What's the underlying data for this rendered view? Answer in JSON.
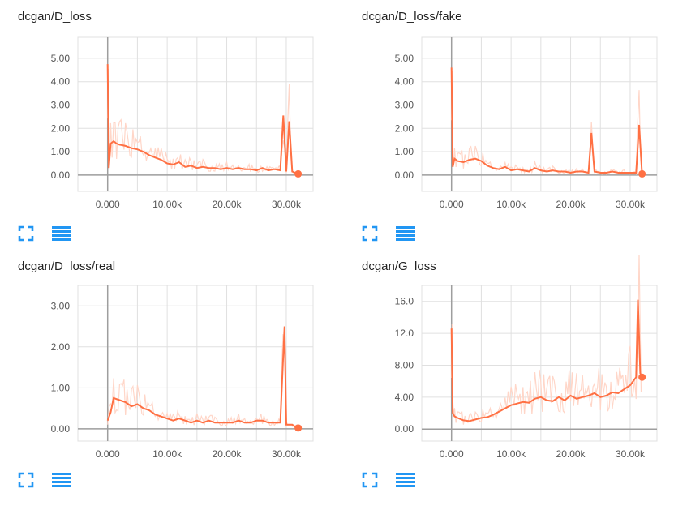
{
  "colors": {
    "line": "#ff7043",
    "line_faint": "#ffd6c8",
    "grid": "#e0e0e0",
    "axis": "#9e9e9e",
    "icon": "#2196f3"
  },
  "icons": {
    "expand": "fullscreen-icon",
    "data": "list-lines-icon"
  },
  "charts": [
    {
      "title": "dcgan/D_loss",
      "xticks": [
        "0.000",
        "10.00k",
        "20.00k",
        "30.00k"
      ],
      "yticks": [
        "0.00",
        "1.00",
        "2.00",
        "3.00",
        "4.00",
        "5.00"
      ]
    },
    {
      "title": "dcgan/D_loss/fake",
      "xticks": [
        "0.000",
        "10.00k",
        "20.00k",
        "30.00k"
      ],
      "yticks": [
        "0.00",
        "1.00",
        "2.00",
        "3.00",
        "4.00",
        "5.00"
      ]
    },
    {
      "title": "dcgan/D_loss/real",
      "xticks": [
        "0.000",
        "10.00k",
        "20.00k",
        "30.00k"
      ],
      "yticks": [
        "0.00",
        "1.00",
        "2.00",
        "3.00"
      ]
    },
    {
      "title": "dcgan/G_loss",
      "xticks": [
        "0.000",
        "10.00k",
        "20.00k",
        "30.00k"
      ],
      "yticks": [
        "0.00",
        "4.00",
        "8.00",
        "12.0",
        "16.0"
      ]
    }
  ],
  "chart_data": [
    {
      "type": "line",
      "title": "dcgan/D_loss",
      "xlim": [
        -5000,
        34500
      ],
      "ylim": [
        -0.7,
        5.9
      ],
      "grid": true,
      "x": [
        0,
        200,
        500,
        1000,
        1500,
        2000,
        3000,
        4000,
        5000,
        6000,
        7000,
        8000,
        9000,
        10000,
        11000,
        12000,
        13000,
        14000,
        15000,
        16000,
        17000,
        18000,
        19000,
        20000,
        21000,
        22000,
        23000,
        24000,
        25000,
        26000,
        27000,
        28000,
        29000,
        29500,
        30000,
        30500,
        31000,
        31500,
        32000
      ],
      "y": [
        4.75,
        0.3,
        1.35,
        1.45,
        1.35,
        1.3,
        1.25,
        1.15,
        1.1,
        1.0,
        0.85,
        0.75,
        0.65,
        0.5,
        0.45,
        0.55,
        0.35,
        0.4,
        0.3,
        0.35,
        0.3,
        0.3,
        0.25,
        0.3,
        0.25,
        0.3,
        0.25,
        0.25,
        0.2,
        0.3,
        0.2,
        0.25,
        0.2,
        2.55,
        0.15,
        2.3,
        0.15,
        0.1,
        0.05
      ]
    },
    {
      "type": "line",
      "title": "dcgan/D_loss/fake",
      "xlim": [
        -5000,
        34500
      ],
      "ylim": [
        -0.7,
        5.9
      ],
      "grid": true,
      "x": [
        0,
        200,
        500,
        1000,
        2000,
        3000,
        4000,
        5000,
        6000,
        7000,
        8000,
        9000,
        10000,
        11000,
        12000,
        13000,
        14000,
        15000,
        16000,
        17000,
        18000,
        19000,
        20000,
        21000,
        22000,
        23000,
        23500,
        24000,
        25000,
        26000,
        27000,
        28000,
        29000,
        30000,
        31000,
        31500,
        32000
      ],
      "y": [
        4.6,
        0.35,
        0.7,
        0.6,
        0.55,
        0.65,
        0.7,
        0.6,
        0.4,
        0.3,
        0.25,
        0.35,
        0.2,
        0.25,
        0.2,
        0.15,
        0.3,
        0.2,
        0.15,
        0.2,
        0.15,
        0.15,
        0.1,
        0.15,
        0.15,
        0.1,
        1.8,
        0.15,
        0.1,
        0.1,
        0.15,
        0.1,
        0.1,
        0.1,
        0.1,
        2.15,
        0.05
      ]
    },
    {
      "type": "line",
      "title": "dcgan/D_loss/real",
      "xlim": [
        -5000,
        34500
      ],
      "ylim": [
        -0.3,
        3.5
      ],
      "grid": true,
      "x": [
        0,
        500,
        1000,
        2000,
        3000,
        4000,
        5000,
        6000,
        7000,
        8000,
        9000,
        10000,
        11000,
        12000,
        13000,
        14000,
        15000,
        16000,
        17000,
        18000,
        19000,
        20000,
        21000,
        22000,
        23000,
        24000,
        25000,
        26000,
        27000,
        28000,
        29000,
        29700,
        30000,
        31000,
        31500,
        32000
      ],
      "y": [
        0.2,
        0.4,
        0.75,
        0.7,
        0.65,
        0.55,
        0.6,
        0.5,
        0.45,
        0.35,
        0.3,
        0.25,
        0.2,
        0.25,
        0.2,
        0.15,
        0.2,
        0.15,
        0.2,
        0.15,
        0.15,
        0.15,
        0.15,
        0.2,
        0.15,
        0.15,
        0.2,
        0.2,
        0.15,
        0.15,
        0.15,
        2.5,
        0.1,
        0.1,
        0.05,
        0.02
      ]
    },
    {
      "type": "line",
      "title": "dcgan/G_loss",
      "xlim": [
        -5000,
        34500
      ],
      "ylim": [
        -1.5,
        18.0
      ],
      "grid": true,
      "x": [
        0,
        200,
        500,
        1000,
        2000,
        3000,
        4000,
        5000,
        6000,
        7000,
        8000,
        9000,
        10000,
        11000,
        12000,
        13000,
        14000,
        15000,
        16000,
        17000,
        18000,
        19000,
        20000,
        21000,
        22000,
        23000,
        24000,
        25000,
        26000,
        27000,
        28000,
        29000,
        30000,
        31000,
        31300,
        31700,
        32000
      ],
      "y": [
        12.6,
        2.0,
        1.6,
        1.4,
        1.1,
        1.0,
        1.2,
        1.4,
        1.5,
        1.8,
        2.2,
        2.6,
        3.0,
        3.2,
        3.4,
        3.3,
        3.8,
        4.0,
        3.6,
        3.5,
        4.0,
        3.6,
        4.2,
        3.8,
        4.0,
        4.2,
        4.5,
        4.0,
        4.2,
        4.6,
        4.5,
        5.0,
        5.5,
        6.5,
        16.2,
        7.0,
        6.5
      ]
    }
  ]
}
